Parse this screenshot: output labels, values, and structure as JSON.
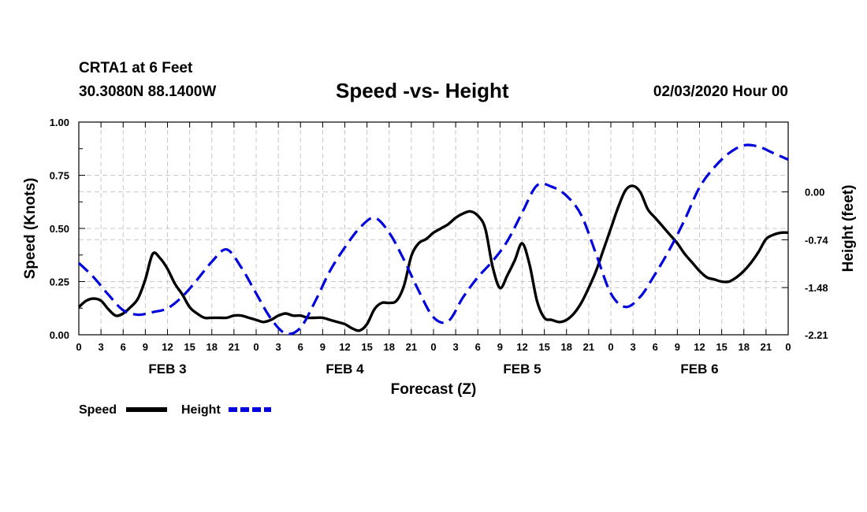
{
  "header": {
    "station": "CRTA1 at 6 Feet",
    "coords": "30.3080N 88.1400W",
    "datetime": "02/03/2020 Hour 00"
  },
  "chart_data": {
    "type": "line",
    "title": "Speed -vs- Height",
    "xlabel": "Forecast (Z)",
    "ylabel": "Speed (Knots)",
    "y2label": "Height (feet)",
    "x_range_hours": [
      0,
      96
    ],
    "x_tick_step_hours": 3,
    "x_tick_labels": [
      "0",
      "3",
      "6",
      "9",
      "12",
      "15",
      "18",
      "21",
      "0",
      "3",
      "6",
      "9",
      "12",
      "15",
      "18",
      "21",
      "0",
      "3",
      "6",
      "9",
      "12",
      "15",
      "18",
      "21",
      "0",
      "3",
      "6",
      "9",
      "12",
      "15",
      "18",
      "21",
      "0"
    ],
    "day_labels": [
      {
        "label": "FEB 3",
        "center_hour": 12
      },
      {
        "label": "FEB 4",
        "center_hour": 36
      },
      {
        "label": "FEB 5",
        "center_hour": 60
      },
      {
        "label": "FEB 6",
        "center_hour": 84
      }
    ],
    "ylim": [
      0,
      1
    ],
    "y_ticks": [
      "0.00",
      "0.25",
      "0.50",
      "0.75",
      "1.00"
    ],
    "y2_ticks": [
      {
        "label": "0.00",
        "value": 0.0
      },
      {
        "label": "-0.74",
        "value": -0.74
      },
      {
        "label": "-1.48",
        "value": -1.48
      },
      {
        "label": "-2.21",
        "value": -2.21
      }
    ],
    "y2_axis_map": {
      "at_left_value_0": -2.21,
      "per_left_unit": 3.29
    },
    "grid": true,
    "series": [
      {
        "name": "Speed",
        "axis": "left",
        "color": "#000000",
        "dash": "solid",
        "x": [
          0,
          1,
          2,
          3,
          4,
          5,
          6,
          7,
          8,
          9,
          10,
          11,
          12,
          13,
          14,
          15,
          16,
          17,
          18,
          19,
          20,
          21,
          22,
          23,
          24,
          25,
          26,
          27,
          28,
          29,
          30,
          31,
          32,
          33,
          34,
          35,
          36,
          37,
          38,
          39,
          40,
          41,
          42,
          43,
          44,
          45,
          46,
          47,
          48,
          49,
          50,
          51,
          52,
          53,
          54,
          55,
          56,
          57,
          58,
          59,
          60,
          61,
          62,
          63,
          64,
          65,
          66,
          67,
          68,
          69,
          70,
          71,
          72,
          73,
          74,
          75,
          76,
          77,
          78,
          79,
          80,
          81,
          82,
          83,
          84,
          85,
          86,
          87,
          88,
          89,
          90,
          91,
          92,
          93,
          94,
          95,
          96
        ],
        "values": [
          0.13,
          0.16,
          0.17,
          0.16,
          0.12,
          0.09,
          0.1,
          0.13,
          0.17,
          0.26,
          0.38,
          0.36,
          0.31,
          0.24,
          0.19,
          0.13,
          0.1,
          0.08,
          0.08,
          0.08,
          0.08,
          0.09,
          0.09,
          0.08,
          0.07,
          0.06,
          0.07,
          0.09,
          0.1,
          0.09,
          0.09,
          0.08,
          0.08,
          0.08,
          0.07,
          0.06,
          0.05,
          0.03,
          0.02,
          0.05,
          0.12,
          0.15,
          0.15,
          0.16,
          0.23,
          0.37,
          0.43,
          0.45,
          0.48,
          0.5,
          0.52,
          0.55,
          0.57,
          0.58,
          0.56,
          0.5,
          0.32,
          0.22,
          0.28,
          0.35,
          0.43,
          0.33,
          0.16,
          0.08,
          0.07,
          0.06,
          0.07,
          0.1,
          0.15,
          0.22,
          0.3,
          0.4,
          0.5,
          0.6,
          0.68,
          0.7,
          0.67,
          0.59,
          0.55,
          0.51,
          0.47,
          0.43,
          0.38,
          0.34,
          0.3,
          0.27,
          0.26,
          0.25,
          0.25,
          0.27,
          0.3,
          0.34,
          0.39,
          0.45,
          0.47,
          0.48,
          0.48
        ]
      },
      {
        "name": "Height",
        "axis": "right",
        "color": "#0000dd",
        "dash": "dashed",
        "x": [
          0,
          2,
          4,
          6,
          8,
          10,
          12,
          14,
          16,
          18,
          20,
          22,
          24,
          26,
          28,
          30,
          32,
          34,
          36,
          38,
          40,
          42,
          44,
          46,
          48,
          50,
          52,
          54,
          56,
          58,
          60,
          62,
          64,
          66,
          68,
          70,
          72,
          74,
          76,
          78,
          80,
          82,
          84,
          86,
          88,
          90,
          92,
          94,
          96
        ],
        "values": [
          -1.1,
          -1.32,
          -1.59,
          -1.83,
          -1.9,
          -1.86,
          -1.8,
          -1.62,
          -1.36,
          -1.08,
          -0.89,
          -1.17,
          -1.57,
          -1.96,
          -2.19,
          -2.1,
          -1.69,
          -1.22,
          -0.86,
          -0.56,
          -0.4,
          -0.63,
          -1.05,
          -1.53,
          -1.94,
          -2.0,
          -1.63,
          -1.32,
          -1.07,
          -0.76,
          -0.32,
          0.1,
          0.08,
          -0.06,
          -0.36,
          -0.96,
          -1.57,
          -1.78,
          -1.62,
          -1.27,
          -0.88,
          -0.43,
          0.07,
          0.38,
          0.6,
          0.72,
          0.7,
          0.6,
          0.5
        ]
      }
    ],
    "legend": {
      "placement": "bottom-left",
      "entries": [
        "Speed",
        "Height"
      ]
    }
  }
}
